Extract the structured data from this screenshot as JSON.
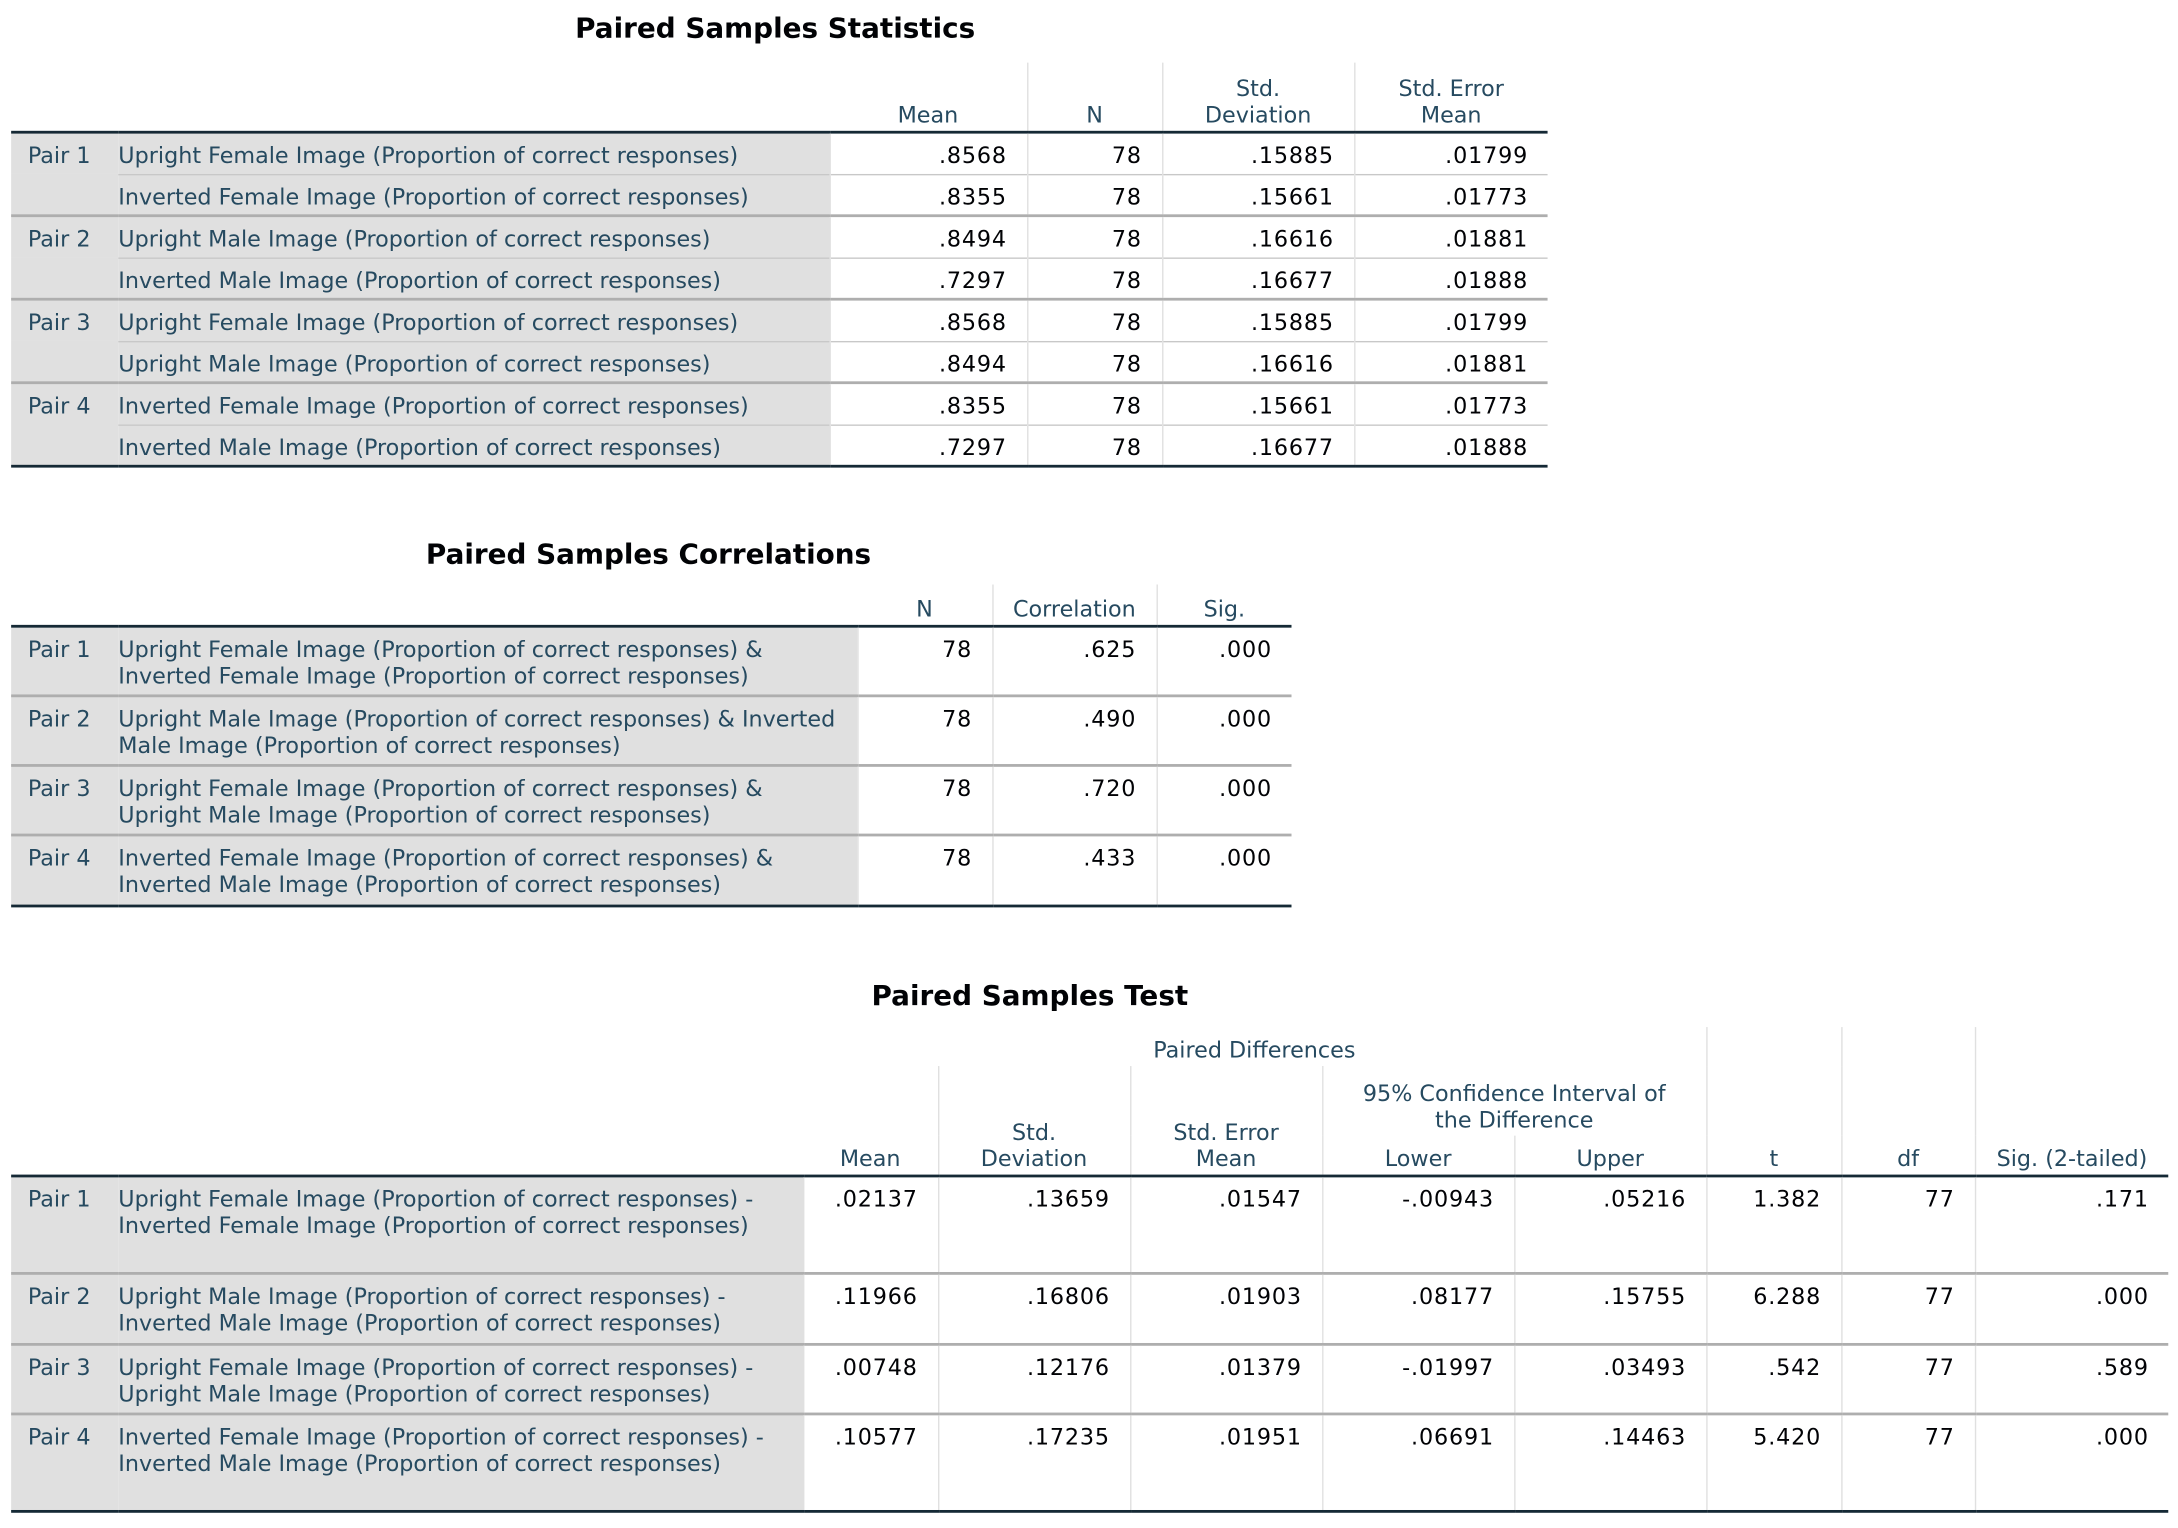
{
  "stats": {
    "title": "Paired Samples Statistics",
    "headers": [
      "Mean",
      "N",
      "Std. Deviation",
      "Std. Error Mean"
    ],
    "rows": [
      {
        "pair": "Pair 1",
        "label": "Upright Female Image (Proportion of correct responses)",
        "values": [
          ".8568",
          "78",
          ".15885",
          ".01799"
        ]
      },
      {
        "pair": "",
        "label": "Inverted Female Image (Proportion of correct responses)",
        "values": [
          ".8355",
          "78",
          ".15661",
          ".01773"
        ]
      },
      {
        "pair": "Pair 2",
        "label": "Upright Male Image (Proportion of correct responses)",
        "values": [
          ".8494",
          "78",
          ".16616",
          ".01881"
        ]
      },
      {
        "pair": "",
        "label": "Inverted Male Image (Proportion of correct responses)",
        "values": [
          ".7297",
          "78",
          ".16677",
          ".01888"
        ]
      },
      {
        "pair": "Pair 3",
        "label": "Upright Female Image (Proportion of correct responses)",
        "values": [
          ".8568",
          "78",
          ".15885",
          ".01799"
        ]
      },
      {
        "pair": "",
        "label": "Upright Male Image (Proportion of correct responses)",
        "values": [
          ".8494",
          "78",
          ".16616",
          ".01881"
        ]
      },
      {
        "pair": "Pair 4",
        "label": "Inverted Female Image (Proportion of correct responses)",
        "values": [
          ".8355",
          "78",
          ".15661",
          ".01773"
        ]
      },
      {
        "pair": "",
        "label": "Inverted Male Image (Proportion of correct responses)",
        "values": [
          ".7297",
          "78",
          ".16677",
          ".01888"
        ]
      }
    ]
  },
  "corr": {
    "title": "Paired Samples Correlations",
    "headers": [
      "N",
      "Correlation",
      "Sig."
    ],
    "rows": [
      {
        "pair": "Pair 1",
        "label": "Upright Female Image (Proportion of correct responses) & Inverted Female Image (Proportion of correct responses)",
        "values": [
          "78",
          ".625",
          ".000"
        ]
      },
      {
        "pair": "Pair 2",
        "label": "Upright Male Image (Proportion of correct responses) & Inverted Male Image (Proportion of correct responses)",
        "values": [
          "78",
          ".490",
          ".000"
        ]
      },
      {
        "pair": "Pair 3",
        "label": "Upright Female Image (Proportion of correct responses) & Upright Male Image (Proportion of correct responses)",
        "values": [
          "78",
          ".720",
          ".000"
        ]
      },
      {
        "pair": "Pair 4",
        "label": "Inverted Female Image (Proportion of correct responses) & Inverted Male Image (Proportion of correct responses)",
        "values": [
          "78",
          ".433",
          ".000"
        ]
      }
    ]
  },
  "test": {
    "title": "Paired Samples Test",
    "group_header": "Paired Differences",
    "ci_header": "95% Confidence Interval of the Difference",
    "headers": [
      "Mean",
      "Std. Deviation",
      "Std. Error Mean",
      "Lower",
      "Upper",
      "t",
      "df",
      "Sig. (2-tailed)"
    ],
    "rows": [
      {
        "pair": "Pair 1",
        "label": "Upright Female Image (Proportion of correct responses) - Inverted Female Image (Proportion of correct responses)",
        "values": [
          ".02137",
          ".13659",
          ".01547",
          "-.00943",
          ".05216",
          "1.382",
          "77",
          ".171"
        ]
      },
      {
        "pair": "Pair 2",
        "label": "Upright Male Image (Proportion of correct responses) - Inverted Male Image (Proportion of correct responses)",
        "values": [
          ".11966",
          ".16806",
          ".01903",
          ".08177",
          ".15755",
          "6.288",
          "77",
          ".000"
        ]
      },
      {
        "pair": "Pair 3",
        "label": "Upright Female Image (Proportion of correct responses) - Upright Male Image (Proportion of correct responses)",
        "values": [
          ".00748",
          ".12176",
          ".01379",
          "-.01997",
          ".03493",
          ".542",
          "77",
          ".589"
        ]
      },
      {
        "pair": "Pair 4",
        "label": "Inverted Female Image (Proportion of correct responses) - Inverted Male Image (Proportion of correct responses)",
        "values": [
          ".10577",
          ".17235",
          ".01951",
          ".06691",
          ".14463",
          "5.420",
          "77",
          ".000"
        ]
      }
    ]
  }
}
